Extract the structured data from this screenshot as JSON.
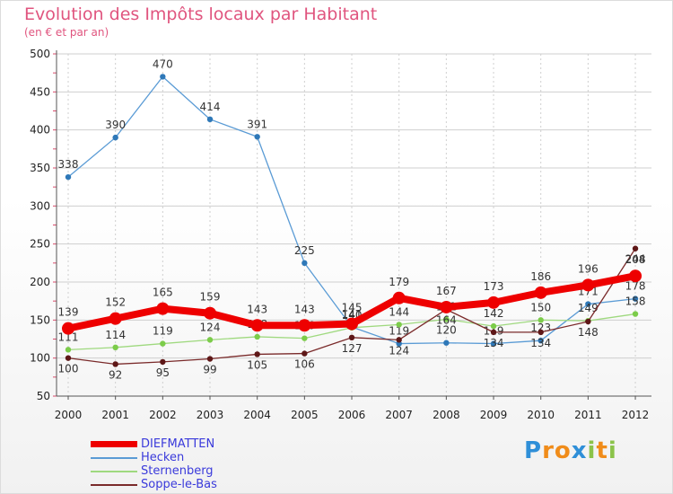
{
  "colors": {
    "title": "#e0557f",
    "grid": "#cfcfcf",
    "axis": "#555555",
    "legend_text": "#3a3adb"
  },
  "chart_data": {
    "type": "line",
    "title": "Evolution des Impôts locaux par Habitant",
    "subtitle": "(en € et par an)",
    "xlabel": "",
    "ylabel": "",
    "ylim": [
      50,
      500
    ],
    "yticks": [
      50,
      100,
      150,
      200,
      250,
      300,
      350,
      400,
      450,
      500
    ],
    "grid": true,
    "categories": [
      "2000",
      "2001",
      "2002",
      "2003",
      "2004",
      "2005",
      "2006",
      "2007",
      "2008",
      "2009",
      "2010",
      "2011",
      "2012"
    ],
    "series": [
      {
        "name": "Hecken",
        "color": "#5a9bd5",
        "marker_color": "#2e78b8",
        "values": [
          338,
          390,
          470,
          414,
          391,
          225,
          141,
          119,
          120,
          119,
          123,
          171,
          178
        ],
        "labels": [
          "338",
          "390",
          "470",
          "414",
          "391",
          "225",
          "141",
          "119",
          "120",
          "119",
          "123",
          "171",
          "178"
        ]
      },
      {
        "name": "Sternenberg",
        "color": "#9fd97f",
        "marker_color": "#7ccc4a",
        "values": [
          111,
          114,
          119,
          124,
          128,
          126,
          140,
          144,
          151,
          142,
          150,
          149,
          158
        ],
        "labels": [
          "111",
          "114",
          "119",
          "124",
          "128",
          "126",
          "140",
          "144",
          "151",
          "142",
          "150",
          "149",
          "158"
        ]
      },
      {
        "name": "Soppe-le-Bas",
        "color": "#7a2a2a",
        "marker_color": "#5e1717",
        "values": [
          100,
          92,
          95,
          99,
          105,
          106,
          127,
          124,
          164,
          134,
          134,
          148,
          244
        ],
        "labels": [
          "100",
          "92",
          "95",
          "99",
          "105",
          "106",
          "127",
          "124",
          "164",
          "134",
          "134",
          "148",
          "244"
        ]
      },
      {
        "name": "DIEFMATTEN",
        "color": "#ee0000",
        "marker_color": "#ee0000",
        "values": [
          139,
          152,
          165,
          159,
          143,
          143,
          145,
          179,
          167,
          173,
          186,
          196,
          208
        ],
        "labels": [
          "139",
          "152",
          "165",
          "159",
          "143",
          "143",
          "145",
          "179",
          "167",
          "173",
          "186",
          "196",
          "208"
        ]
      }
    ],
    "legend": {
      "position": "bottom-left",
      "entries": [
        "DIEFMATTEN",
        "Hecken",
        "Sternenberg",
        "Soppe-le-Bas"
      ]
    }
  },
  "logo": {
    "text": "Proxiti",
    "letters": [
      {
        "ch": "P",
        "color": "#2f8fd8"
      },
      {
        "ch": "r",
        "color": "#f08c1a"
      },
      {
        "ch": "o",
        "color": "#f08c1a"
      },
      {
        "ch": "x",
        "color": "#2f8fd8"
      },
      {
        "ch": "i",
        "color": "#8bc34a"
      },
      {
        "ch": "t",
        "color": "#f08c1a"
      },
      {
        "ch": "i",
        "color": "#8bc34a"
      }
    ]
  }
}
